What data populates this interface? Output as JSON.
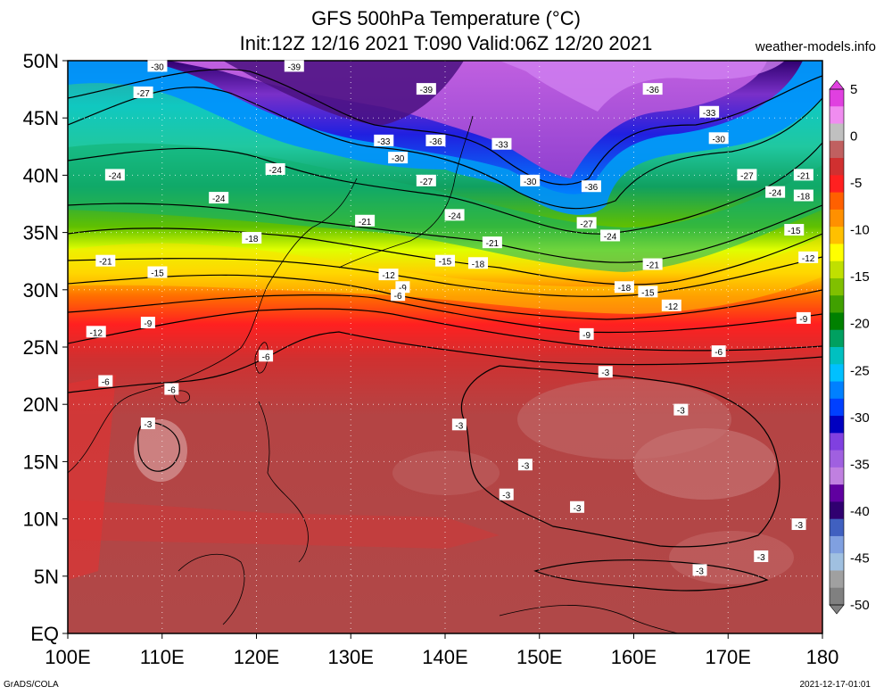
{
  "title": {
    "line1": "GFS 500hPa Temperature (°C)",
    "line2": "Init:12Z 12/16 2021 T:090 Valid:06Z 12/20 2021"
  },
  "site": "weather-models.info",
  "footer": {
    "left": "GrADS/COLA",
    "right": "2021-12-17-01:01"
  },
  "axes": {
    "lat_labels": [
      "50N",
      "45N",
      "40N",
      "35N",
      "30N",
      "25N",
      "20N",
      "15N",
      "10N",
      "5N",
      "EQ"
    ],
    "lon_labels": [
      "100E",
      "110E",
      "120E",
      "130E",
      "140E",
      "150E",
      "160E",
      "170E",
      "180"
    ]
  },
  "colorbar": {
    "labels": [
      "5",
      "0",
      "-5",
      "-10",
      "-15",
      "-20",
      "-25",
      "-30",
      "-35",
      "-40",
      "-45",
      "-50"
    ],
    "colors": [
      "#e040e0",
      "#f08cf0",
      "#c0c0c0",
      "#c06060",
      "#d03030",
      "#ff2020",
      "#ff6000",
      "#ff9000",
      "#ffc000",
      "#ffff00",
      "#c0e000",
      "#80c000",
      "#40a000",
      "#008000",
      "#00a060",
      "#00c0c0",
      "#00c0ff",
      "#0080ff",
      "#0040ff",
      "#0000c0",
      "#8040e0",
      "#a060e0",
      "#c080e0",
      "#6000a0",
      "#300070",
      "#4060c0",
      "#80a0e0",
      "#a0c0e0",
      "#a0a0a0",
      "#808080"
    ]
  },
  "contour_labels": [
    {
      "text": "-30",
      "lon": 109.5,
      "lat": 49.5
    },
    {
      "text": "-39",
      "lon": 124,
      "lat": 49.5
    },
    {
      "text": "-39",
      "lon": 138,
      "lat": 47.5
    },
    {
      "text": "-36",
      "lon": 162,
      "lat": 47.5
    },
    {
      "text": "-27",
      "lon": 108,
      "lat": 47.2
    },
    {
      "text": "-33",
      "lon": 168,
      "lat": 45.5
    },
    {
      "text": "-33",
      "lon": 133.5,
      "lat": 43
    },
    {
      "text": "-36",
      "lon": 139,
      "lat": 43
    },
    {
      "text": "-33",
      "lon": 146,
      "lat": 42.7
    },
    {
      "text": "-30",
      "lon": 169,
      "lat": 43.2
    },
    {
      "text": "-30",
      "lon": 135,
      "lat": 41.5
    },
    {
      "text": "-24",
      "lon": 105,
      "lat": 40
    },
    {
      "text": "-24",
      "lon": 122,
      "lat": 40.5
    },
    {
      "text": "-27",
      "lon": 138,
      "lat": 39.5
    },
    {
      "text": "-30",
      "lon": 149,
      "lat": 39.5
    },
    {
      "text": "-36",
      "lon": 155.5,
      "lat": 39
    },
    {
      "text": "-27",
      "lon": 172,
      "lat": 40
    },
    {
      "text": "-21",
      "lon": 178,
      "lat": 40
    },
    {
      "text": "-24",
      "lon": 116,
      "lat": 38
    },
    {
      "text": "-24",
      "lon": 175,
      "lat": 38.5
    },
    {
      "text": "-18",
      "lon": 178,
      "lat": 38.2
    },
    {
      "text": "-24",
      "lon": 141,
      "lat": 36.5
    },
    {
      "text": "-21",
      "lon": 131.5,
      "lat": 36
    },
    {
      "text": "-27",
      "lon": 155,
      "lat": 35.8
    },
    {
      "text": "-24",
      "lon": 157.5,
      "lat": 34.7
    },
    {
      "text": "-15",
      "lon": 177,
      "lat": 35.2
    },
    {
      "text": "-18",
      "lon": 119.5,
      "lat": 34.5
    },
    {
      "text": "-21",
      "lon": 145,
      "lat": 34.1
    },
    {
      "text": "-21",
      "lon": 104,
      "lat": 32.5
    },
    {
      "text": "-15",
      "lon": 140,
      "lat": 32.5
    },
    {
      "text": "-18",
      "lon": 143.5,
      "lat": 32.3
    },
    {
      "text": "-21",
      "lon": 162,
      "lat": 32.2
    },
    {
      "text": "-12",
      "lon": 178.5,
      "lat": 32.8
    },
    {
      "text": "-15",
      "lon": 109.5,
      "lat": 31.5
    },
    {
      "text": "-12",
      "lon": 134,
      "lat": 31.3
    },
    {
      "text": "-9",
      "lon": 135.5,
      "lat": 30.2
    },
    {
      "text": "-18",
      "lon": 159,
      "lat": 30.2
    },
    {
      "text": "-15",
      "lon": 161.5,
      "lat": 29.8
    },
    {
      "text": "-6",
      "lon": 135,
      "lat": 29.5
    },
    {
      "text": "-12",
      "lon": 164,
      "lat": 28.6
    },
    {
      "text": "-9",
      "lon": 108.5,
      "lat": 27.1
    },
    {
      "text": "-9",
      "lon": 178,
      "lat": 27.5
    },
    {
      "text": "-12",
      "lon": 103,
      "lat": 26.3
    },
    {
      "text": "-9",
      "lon": 155,
      "lat": 26.1
    },
    {
      "text": "-6",
      "lon": 121,
      "lat": 24.2
    },
    {
      "text": "-6",
      "lon": 169,
      "lat": 24.6
    },
    {
      "text": "-3",
      "lon": 157,
      "lat": 22.8
    },
    {
      "text": "-6",
      "lon": 104,
      "lat": 22
    },
    {
      "text": "-6",
      "lon": 111,
      "lat": 21.3
    },
    {
      "text": "-3",
      "lon": 165,
      "lat": 19.5
    },
    {
      "text": "-3",
      "lon": 108.5,
      "lat": 18.3
    },
    {
      "text": "-3",
      "lon": 141.5,
      "lat": 18.2
    },
    {
      "text": "-3",
      "lon": 148.5,
      "lat": 14.7
    },
    {
      "text": "-3",
      "lon": 146.5,
      "lat": 12.1
    },
    {
      "text": "-3",
      "lon": 154,
      "lat": 11
    },
    {
      "text": "-3",
      "lon": 177.5,
      "lat": 9.5
    },
    {
      "text": "-3",
      "lon": 173.5,
      "lat": 6.7
    },
    {
      "text": "-3",
      "lon": 167,
      "lat": 5.5
    }
  ]
}
